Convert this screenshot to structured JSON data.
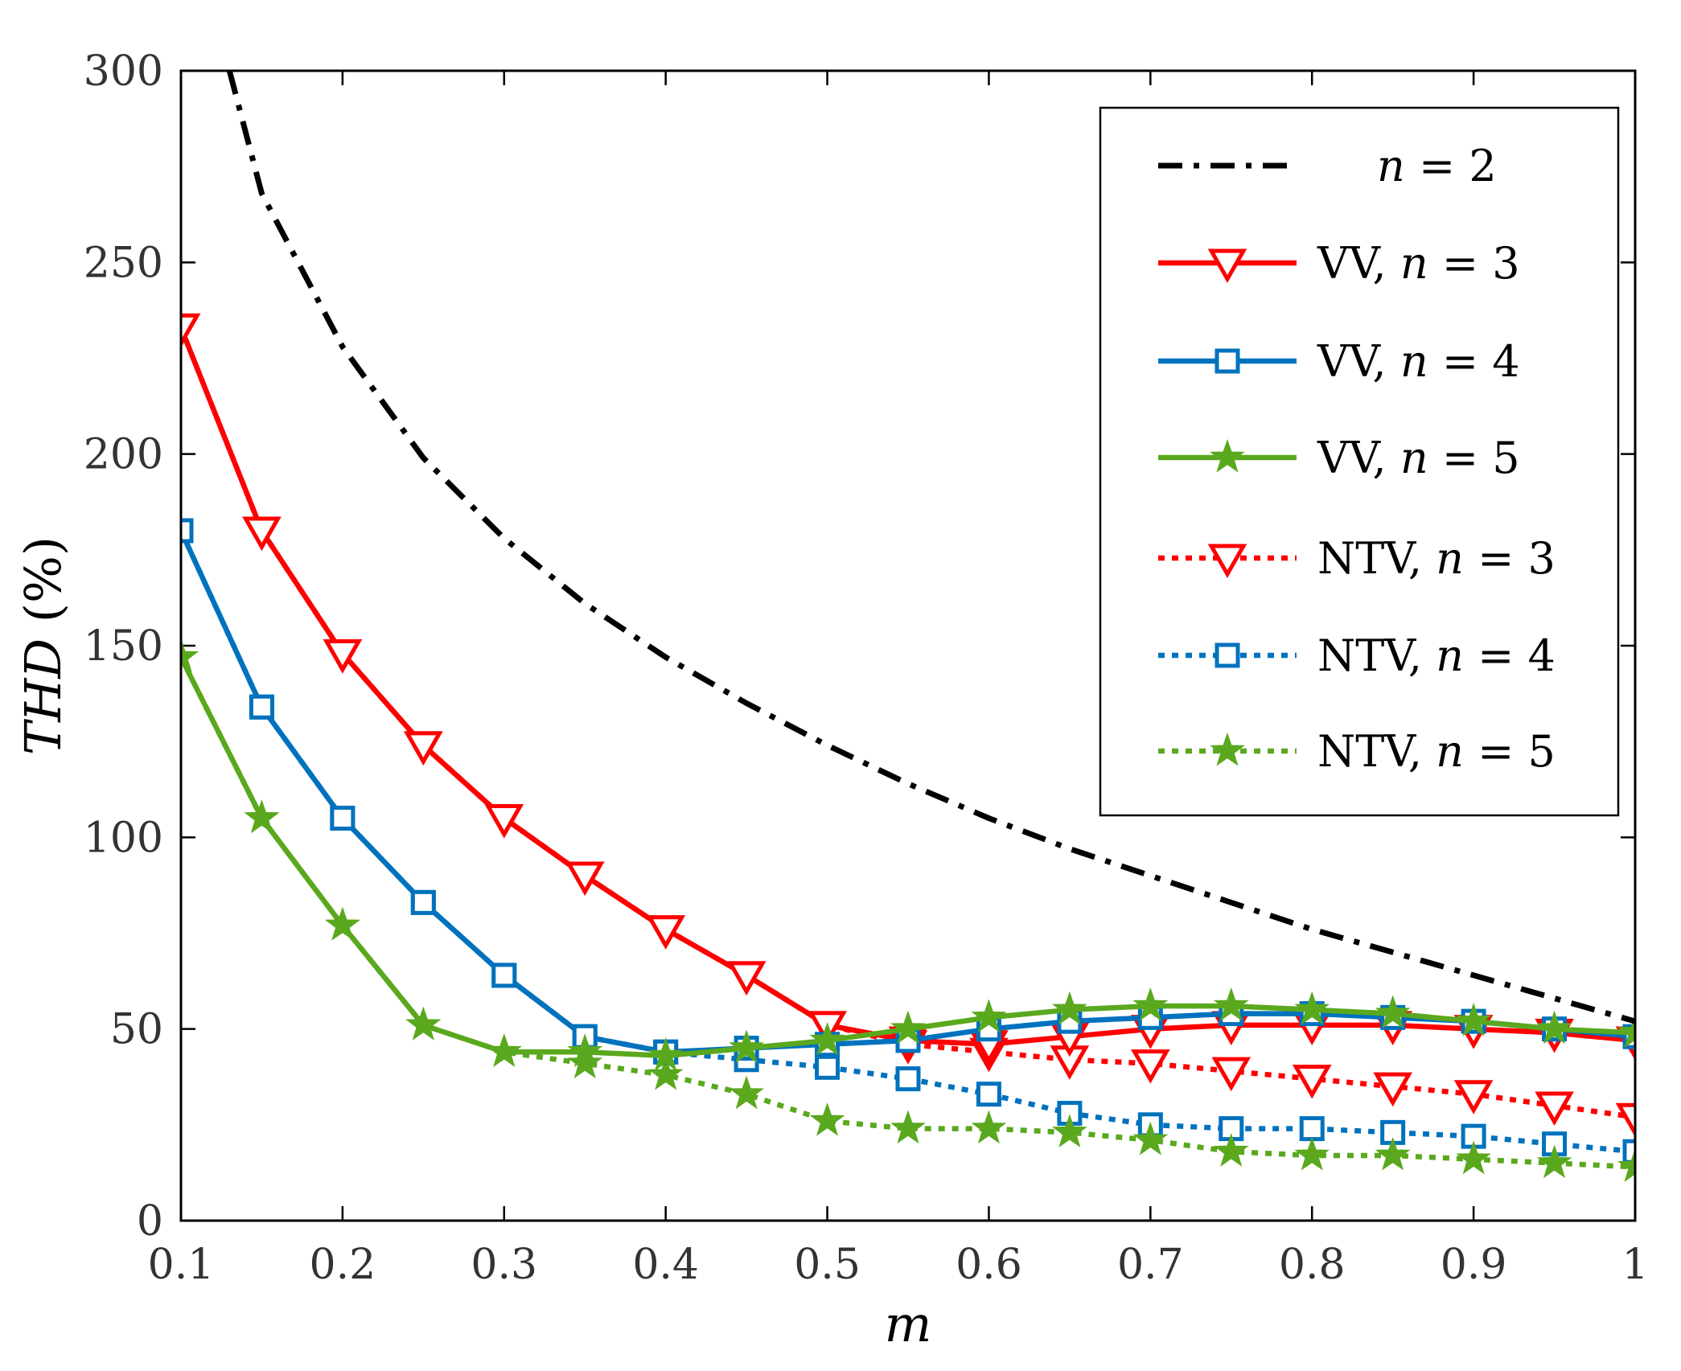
{
  "chart_data": {
    "type": "line",
    "title": "",
    "xlabel": "m",
    "ylabel_italic": "THD",
    "ylabel_unit": " (%)",
    "xlim": [
      0.1,
      1
    ],
    "ylim": [
      0,
      300
    ],
    "x_ticks": [
      "0.1",
      "0.2",
      "0.3",
      "0.4",
      "0.5",
      "0.6",
      "0.7",
      "0.8",
      "0.9",
      "1"
    ],
    "y_ticks": [
      "0",
      "50",
      "100",
      "150",
      "200",
      "250",
      "300"
    ],
    "legend_position": "top-right",
    "x": [
      0.1,
      0.15,
      0.2,
      0.25,
      0.3,
      0.35,
      0.4,
      0.45,
      0.5,
      0.55,
      0.6,
      0.65,
      0.7,
      0.75,
      0.8,
      0.85,
      0.9,
      0.95,
      1.0
    ],
    "series": [
      {
        "name": "n = 2",
        "legend_prefix": "",
        "legend_var": "n",
        "legend_suffix": " = 2",
        "color": "#000000",
        "style": "dashdot",
        "marker": "none",
        "x": [
          0.13,
          0.15,
          0.2,
          0.25,
          0.3,
          0.35,
          0.4,
          0.45,
          0.5,
          0.55,
          0.6,
          0.65,
          0.7,
          0.75,
          0.8,
          0.85,
          0.9,
          0.95,
          1.0
        ],
        "values": [
          300,
          268,
          228,
          199,
          178,
          161,
          147,
          135,
          124,
          114,
          105,
          97,
          90,
          83,
          76,
          70,
          64,
          58,
          52
        ]
      },
      {
        "name": "VV, n = 3",
        "legend_prefix": "VV, ",
        "legend_var": "n",
        "legend_suffix": " = 3",
        "color": "#ff0000",
        "style": "solid",
        "marker": "triangle-down",
        "values": [
          233,
          180,
          148,
          124,
          105,
          90,
          76,
          64,
          51,
          47,
          46,
          48,
          50,
          51,
          51,
          51,
          50,
          49,
          47
        ]
      },
      {
        "name": "VV, n = 4",
        "legend_prefix": "VV, ",
        "legend_var": "n",
        "legend_suffix": " = 4",
        "color": "#0072bd",
        "style": "solid",
        "marker": "square",
        "values": [
          180,
          134,
          105,
          83,
          64,
          48,
          44,
          45,
          46,
          47,
          50,
          52,
          53,
          54,
          54,
          53,
          52,
          50,
          48
        ]
      },
      {
        "name": "VV, n = 5",
        "legend_prefix": "VV, ",
        "legend_var": "n",
        "legend_suffix": " = 5",
        "color": "#5aa81e",
        "style": "solid",
        "marker": "star",
        "values": [
          147,
          105,
          77,
          51,
          44,
          44,
          43,
          45,
          47,
          50,
          53,
          55,
          56,
          56,
          55,
          54,
          52,
          50,
          49
        ]
      },
      {
        "name": "NTV, n = 3",
        "legend_prefix": "NTV, ",
        "legend_var": "n",
        "legend_suffix": " = 3",
        "color": "#ff0000",
        "style": "dotted",
        "marker": "triangle-down",
        "values": [
          233,
          180,
          148,
          124,
          105,
          90,
          76,
          64,
          51,
          46,
          44,
          42,
          41,
          39,
          37,
          35,
          33,
          30,
          27
        ]
      },
      {
        "name": "NTV, n = 4",
        "legend_prefix": "NTV, ",
        "legend_var": "n",
        "legend_suffix": " = 4",
        "color": "#0072bd",
        "style": "dotted",
        "marker": "square",
        "values": [
          180,
          134,
          105,
          83,
          64,
          48,
          44,
          42,
          40,
          37,
          33,
          28,
          25,
          24,
          24,
          23,
          22,
          20,
          18
        ]
      },
      {
        "name": "NTV, n = 5",
        "legend_prefix": "NTV, ",
        "legend_var": "n",
        "legend_suffix": " = 5",
        "color": "#5aa81e",
        "style": "dotted",
        "marker": "star",
        "values": [
          147,
          105,
          77,
          51,
          44,
          41,
          38,
          33,
          26,
          24,
          24,
          23,
          21,
          18,
          17,
          17,
          16,
          15,
          14
        ]
      }
    ]
  }
}
